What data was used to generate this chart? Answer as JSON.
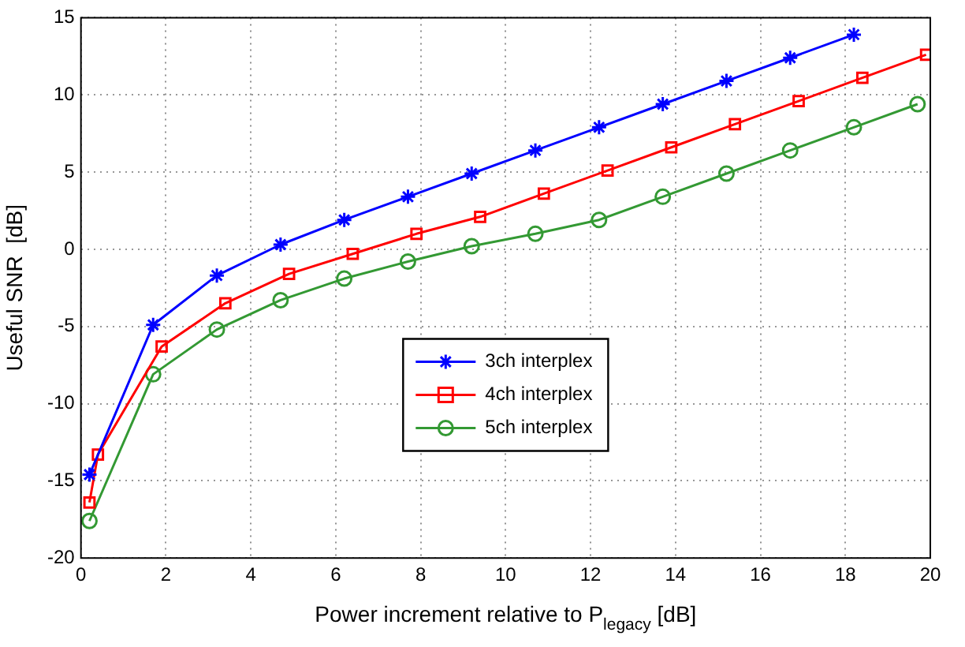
{
  "chart_data": {
    "type": "line",
    "xlabel": "Power increment relative to P$_{legacy}$ [dB]",
    "ylabel": "Useful SNR  [dB]",
    "xlim": [
      0,
      20
    ],
    "ylim": [
      -20,
      15
    ],
    "xticks": [
      0,
      2,
      4,
      6,
      8,
      10,
      12,
      14,
      16,
      18,
      20
    ],
    "yticks": [
      -20,
      -15,
      -10,
      -5,
      0,
      5,
      10,
      15
    ],
    "grid": true,
    "legend": "center",
    "line_style": "solid",
    "series": [
      {
        "name": "3ch interplex",
        "color": "#0000ff",
        "marker": "cross",
        "x": [
          0.2,
          1.7,
          3.2,
          4.7,
          6.2,
          7.7,
          9.2,
          10.7,
          12.2,
          13.7,
          15.2,
          16.7,
          18.2
        ],
        "values": [
          -14.6,
          -4.9,
          -1.7,
          0.3,
          1.9,
          3.4,
          4.9,
          6.4,
          7.9,
          9.4,
          10.9,
          12.4,
          13.9
        ]
      },
      {
        "name": "4ch interplex",
        "color": "#ff0000",
        "marker": "square",
        "x": [
          0.2,
          0.4,
          1.9,
          3.4,
          4.9,
          6.4,
          7.9,
          9.4,
          10.9,
          12.4,
          13.9,
          15.4,
          16.9,
          18.4,
          19.9
        ],
        "values": [
          -16.4,
          -13.3,
          -6.3,
          -3.5,
          -1.6,
          -0.3,
          1.0,
          2.1,
          3.6,
          5.1,
          6.6,
          8.1,
          9.6,
          11.1,
          12.6
        ]
      },
      {
        "name": "5ch interplex",
        "color": "#339933",
        "marker": "circle",
        "x": [
          0.2,
          1.7,
          3.2,
          4.7,
          6.2,
          7.7,
          9.2,
          10.7,
          12.2,
          13.7,
          15.2,
          16.7,
          18.2,
          19.7
        ],
        "values": [
          -17.6,
          -8.1,
          -5.2,
          -3.3,
          -1.9,
          -0.8,
          0.2,
          1.0,
          1.9,
          3.4,
          4.9,
          6.4,
          7.9,
          9.4
        ]
      }
    ]
  }
}
